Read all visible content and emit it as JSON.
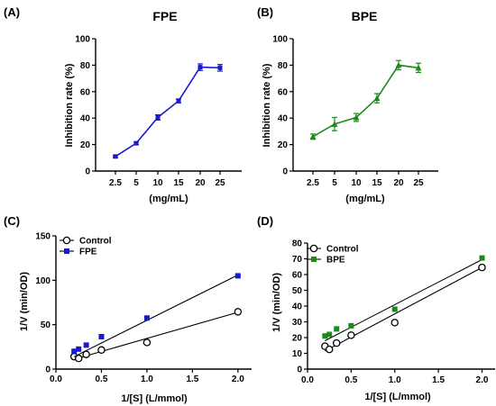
{
  "chart_data": [
    {
      "panel_label": "(A)",
      "type": "line",
      "title": "FPE",
      "xlabel": "(mg/mL)",
      "ylabel": "Inhibition rate (%)",
      "ylim": [
        0,
        100
      ],
      "yticks": [
        "0",
        "20",
        "40",
        "60",
        "80",
        "100"
      ],
      "categories": [
        "2.5",
        "5",
        "10",
        "15",
        "20",
        "25"
      ],
      "series": [
        {
          "color": "#1a1acc",
          "marker": "square",
          "values": [
            11,
            21,
            40.5,
            53,
            78.5,
            78
          ],
          "errors": [
            0.8,
            1.0,
            2.0,
            1.5,
            2.5,
            2.5
          ]
        }
      ],
      "grid": false
    },
    {
      "panel_label": "(B)",
      "type": "line",
      "title": "BPE",
      "xlabel": "(mg/mL)",
      "ylabel": "Inhibition rate (%)",
      "ylim": [
        0,
        100
      ],
      "yticks": [
        "0",
        "20",
        "40",
        "60",
        "80",
        "100"
      ],
      "categories": [
        "2.5",
        "5",
        "10",
        "15",
        "20",
        "25"
      ],
      "series": [
        {
          "color": "#1a8a1a",
          "marker": "triangle",
          "values": [
            26,
            35.5,
            40.5,
            55,
            80,
            78
          ],
          "errors": [
            2.0,
            5.0,
            3.0,
            3.5,
            3.5,
            3.5
          ]
        }
      ],
      "grid": false
    },
    {
      "panel_label": "(C)",
      "type": "scatter",
      "xlabel": "1/[S] (L/mmol)",
      "ylabel": "1/V (min/OD)",
      "xlim": [
        0,
        2.15
      ],
      "ylim": [
        0,
        150
      ],
      "xticks": [
        "0.0",
        "0.5",
        "1.0",
        "1.5",
        "2.0"
      ],
      "yticks": [
        "0",
        "50",
        "100",
        "150"
      ],
      "legend_position": "top-left",
      "series": [
        {
          "name": "Control",
          "color": "#000000",
          "marker": "open-circle",
          "x": [
            0.2,
            0.25,
            0.333,
            0.5,
            1.0,
            2.0
          ],
          "y": [
            14,
            12,
            16.5,
            21.5,
            30,
            64.5
          ],
          "fit": [
            [
              0.2,
              11
            ],
            [
              2.0,
              64
            ]
          ]
        },
        {
          "name": "FPE",
          "color": "#1a1acc",
          "marker": "filled-square",
          "x": [
            0.2,
            0.25,
            0.333,
            0.5,
            1.0,
            2.0
          ],
          "y": [
            20,
            22.5,
            27,
            36.5,
            57.5,
            105
          ],
          "fit": [
            [
              0.2,
              14
            ],
            [
              2.0,
              106
            ]
          ]
        }
      ],
      "grid": false
    },
    {
      "panel_label": "(D)",
      "type": "scatter",
      "xlabel": "1/[S] (L/mmol)",
      "ylabel": "1/V (min/OD)",
      "xlim": [
        0,
        2.15
      ],
      "ylim": [
        0,
        80
      ],
      "xticks": [
        "0.0",
        "0.5",
        "1.0",
        "1.5",
        "2.0"
      ],
      "yticks": [
        "0",
        "10",
        "20",
        "30",
        "40",
        "50",
        "60",
        "70",
        "80"
      ],
      "legend_position": "top-left",
      "series": [
        {
          "name": "Control",
          "color": "#000000",
          "marker": "open-circle",
          "x": [
            0.2,
            0.25,
            0.333,
            0.5,
            1.0,
            2.0
          ],
          "y": [
            14.5,
            12.5,
            16.5,
            21.5,
            29.5,
            64.5
          ],
          "fit": [
            [
              0.2,
              11.5
            ],
            [
              2.0,
              64.5
            ]
          ]
        },
        {
          "name": "BPE",
          "color": "#1a8a1a",
          "marker": "filled-square",
          "x": [
            0.2,
            0.25,
            0.333,
            0.5,
            1.0,
            2.0
          ],
          "y": [
            21,
            22,
            25.5,
            27.5,
            38,
            70.5
          ],
          "fit": [
            [
              0.2,
              18
            ],
            [
              2.0,
              69.5
            ]
          ]
        }
      ],
      "grid": false
    }
  ]
}
